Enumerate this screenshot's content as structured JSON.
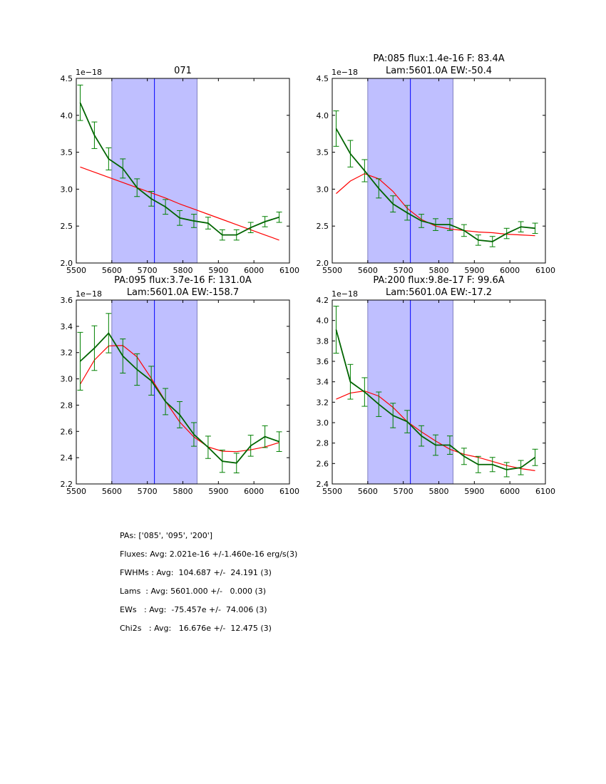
{
  "chart_data": [
    {
      "type": "line",
      "title_lines": [
        "071"
      ],
      "offset_text": "1e−18",
      "xlim": [
        5500,
        6100
      ],
      "ylim": [
        2.0,
        4.5
      ],
      "xticks": [
        "5500",
        "5600",
        "5700",
        "5800",
        "5900",
        "6000",
        "6100"
      ],
      "yticks": [
        "2.0",
        "2.5",
        "3.0",
        "3.5",
        "4.0",
        "4.5"
      ],
      "shaded_region": [
        5600,
        5840
      ],
      "vline": 5720,
      "x": [
        5511,
        5551,
        5591,
        5631,
        5671,
        5711,
        5751,
        5791,
        5831,
        5871,
        5911,
        5951,
        5991,
        6031,
        6071
      ],
      "series": [
        {
          "name": "data",
          "color": "#006400",
          "values": [
            4.17,
            3.73,
            3.41,
            3.28,
            3.02,
            2.87,
            2.76,
            2.61,
            2.57,
            2.54,
            2.38,
            2.38,
            2.48,
            2.56,
            2.62
          ],
          "errors": [
            0.24,
            0.18,
            0.15,
            0.13,
            0.12,
            0.1,
            0.1,
            0.1,
            0.09,
            0.08,
            0.07,
            0.07,
            0.07,
            0.07,
            0.07
          ]
        },
        {
          "name": "fit",
          "color": "#ff0000",
          "values": [
            3.3,
            3.23,
            3.16,
            3.09,
            3.02,
            2.95,
            2.88,
            2.8,
            2.73,
            2.66,
            2.59,
            2.52,
            2.45,
            2.38,
            2.31
          ]
        }
      ]
    },
    {
      "type": "line",
      "title_lines": [
        "PA:085 flux:1.4e-16 F: 83.4A",
        "Lam:5601.0A EW:-50.4"
      ],
      "offset_text": "1e−18",
      "xlim": [
        5500,
        6100
      ],
      "ylim": [
        2.0,
        4.5
      ],
      "xticks": [
        "5500",
        "5600",
        "5700",
        "5800",
        "5900",
        "6000",
        "6100"
      ],
      "yticks": [
        "2.0",
        "2.5",
        "3.0",
        "3.5",
        "4.0",
        "4.5"
      ],
      "shaded_region": [
        5600,
        5840
      ],
      "vline": 5720,
      "x": [
        5511,
        5551,
        5591,
        5631,
        5671,
        5711,
        5751,
        5791,
        5831,
        5871,
        5911,
        5951,
        5991,
        6031,
        6071
      ],
      "series": [
        {
          "name": "data",
          "color": "#006400",
          "values": [
            3.82,
            3.48,
            3.25,
            3.01,
            2.8,
            2.68,
            2.57,
            2.52,
            2.52,
            2.44,
            2.31,
            2.29,
            2.4,
            2.49,
            2.47
          ],
          "errors": [
            0.24,
            0.18,
            0.15,
            0.13,
            0.11,
            0.1,
            0.09,
            0.08,
            0.08,
            0.08,
            0.07,
            0.07,
            0.07,
            0.07,
            0.07
          ]
        },
        {
          "name": "fit",
          "color": "#ff0000",
          "values": [
            2.94,
            3.11,
            3.21,
            3.14,
            2.97,
            2.74,
            2.59,
            2.5,
            2.46,
            2.44,
            2.42,
            2.41,
            2.39,
            2.38,
            2.37
          ]
        }
      ]
    },
    {
      "type": "line",
      "title_lines": [
        "PA:095 flux:3.7e-16 F: 131.0A",
        "Lam:5601.0A EW:-158.7"
      ],
      "offset_text": "1e−18",
      "xlim": [
        5500,
        6100
      ],
      "ylim": [
        2.2,
        3.6
      ],
      "xticks": [
        "5500",
        "5600",
        "5700",
        "5800",
        "5900",
        "6000",
        "6100"
      ],
      "yticks": [
        "2.2",
        "2.4",
        "2.6",
        "2.8",
        "3.0",
        "3.2",
        "3.4",
        "3.6"
      ],
      "shaded_region": [
        5600,
        5840
      ],
      "vline": 5720,
      "x": [
        5511,
        5551,
        5591,
        5631,
        5671,
        5711,
        5751,
        5791,
        5831,
        5871,
        5911,
        5951,
        5991,
        6031,
        6071
      ],
      "series": [
        {
          "name": "data",
          "color": "#006400",
          "values": [
            3.134,
            3.234,
            3.348,
            3.174,
            3.071,
            2.986,
            2.827,
            2.727,
            2.577,
            2.479,
            2.373,
            2.359,
            2.491,
            2.56,
            2.522
          ],
          "errors": [
            0.22,
            0.17,
            0.15,
            0.13,
            0.12,
            0.11,
            0.1,
            0.1,
            0.09,
            0.085,
            0.085,
            0.075,
            0.08,
            0.083,
            0.075
          ]
        },
        {
          "name": "fit",
          "color": "#ff0000",
          "values": [
            2.959,
            3.143,
            3.251,
            3.254,
            3.167,
            3.004,
            2.83,
            2.672,
            2.558,
            2.482,
            2.449,
            2.446,
            2.46,
            2.482,
            2.515
          ]
        }
      ]
    },
    {
      "type": "line",
      "title_lines": [
        "PA:200 flux:9.8e-17 F: 99.6A",
        "Lam:5601.0A EW:-17.2"
      ],
      "offset_text": "1e−18",
      "xlim": [
        5500,
        6100
      ],
      "ylim": [
        2.4,
        4.2
      ],
      "xticks": [
        "5500",
        "5600",
        "5700",
        "5800",
        "5900",
        "6000",
        "6100"
      ],
      "yticks": [
        "2.4",
        "2.6",
        "2.8",
        "3.0",
        "3.2",
        "3.4",
        "3.6",
        "3.8",
        "4.0",
        "4.2"
      ],
      "shaded_region": [
        5600,
        5840
      ],
      "vline": 5720,
      "x": [
        5511,
        5551,
        5591,
        5631,
        5671,
        5711,
        5751,
        5791,
        5831,
        5871,
        5911,
        5951,
        5991,
        6031,
        6071
      ],
      "series": [
        {
          "name": "data",
          "color": "#006400",
          "values": [
            3.91,
            3.4,
            3.3,
            3.18,
            3.07,
            3.01,
            2.87,
            2.78,
            2.78,
            2.67,
            2.59,
            2.59,
            2.54,
            2.56,
            2.66
          ],
          "errors": [
            0.23,
            0.17,
            0.14,
            0.12,
            0.12,
            0.11,
            0.1,
            0.1,
            0.09,
            0.08,
            0.08,
            0.07,
            0.07,
            0.07,
            0.08
          ]
        },
        {
          "name": "fit",
          "color": "#ff0000",
          "values": [
            3.23,
            3.29,
            3.31,
            3.26,
            3.15,
            3.01,
            2.91,
            2.82,
            2.74,
            2.69,
            2.66,
            2.62,
            2.58,
            2.55,
            2.53
          ]
        }
      ]
    }
  ],
  "colors": {
    "shade": "#bfbfff",
    "vline": "#0000ff",
    "errorbar": "#008000"
  },
  "summary": [
    "PAs: ['085', '095', '200']",
    "Fluxes: Avg: 2.021e-16 +/-1.460e-16 erg/s(3)",
    "FWHMs : Avg:  104.687 +/-  24.191 (3)",
    "Lams  : Avg: 5601.000 +/-   0.000 (3)",
    "EWs   : Avg:  -75.457e +/-  74.006 (3)",
    "Chi2s   : Avg:   16.676e +/-  12.475 (3)"
  ]
}
